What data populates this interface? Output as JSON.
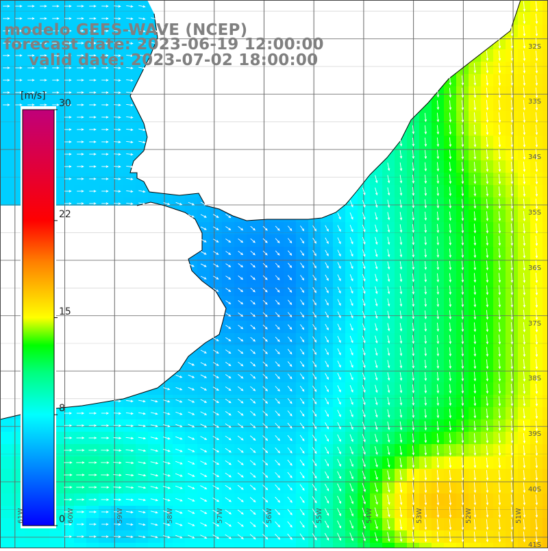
{
  "title": {
    "line1": "modelo GEFS-WAVE (NCEP)",
    "line2": "forecast date: 2023-06-19 12:00:00",
    "line3": "valid date: 2023-07-02 18:00:00"
  },
  "colorbar": {
    "unit": "[m/s]",
    "ticks": [
      "30",
      "22",
      "15",
      "8",
      "0"
    ],
    "tick_values": [
      30,
      22,
      15,
      8,
      0
    ],
    "range": [
      0,
      30
    ],
    "colors": [
      "#0000ff",
      "#00a0ff",
      "#00ffff",
      "#00ff80",
      "#00ff00",
      "#ffff00",
      "#ff8000",
      "#ff0000",
      "#c0007a"
    ]
  },
  "map": {
    "lat_labels": [
      "32S",
      "33S",
      "34S",
      "35S",
      "36S",
      "37S",
      "38S",
      "39S",
      "40S",
      "41S"
    ],
    "lat_values": [
      -32,
      -33,
      -34,
      -35,
      -36,
      -37,
      -38,
      -39,
      -40,
      -41
    ],
    "lon_labels": [
      "61W",
      "60W",
      "59W",
      "58W",
      "57W",
      "56W",
      "55W",
      "54W",
      "53W",
      "52W",
      "51W"
    ],
    "lon_values": [
      -61,
      -60,
      -59,
      -58,
      -57,
      -56,
      -55,
      -54,
      -53,
      -52,
      -51
    ],
    "lat_range": [
      -41.2,
      -31.3
    ],
    "lon_range": [
      -61.3,
      -50.3
    ],
    "land_color": "#ffffff",
    "grid_color": "#666666",
    "arrow_color": "#ffffff"
  }
}
